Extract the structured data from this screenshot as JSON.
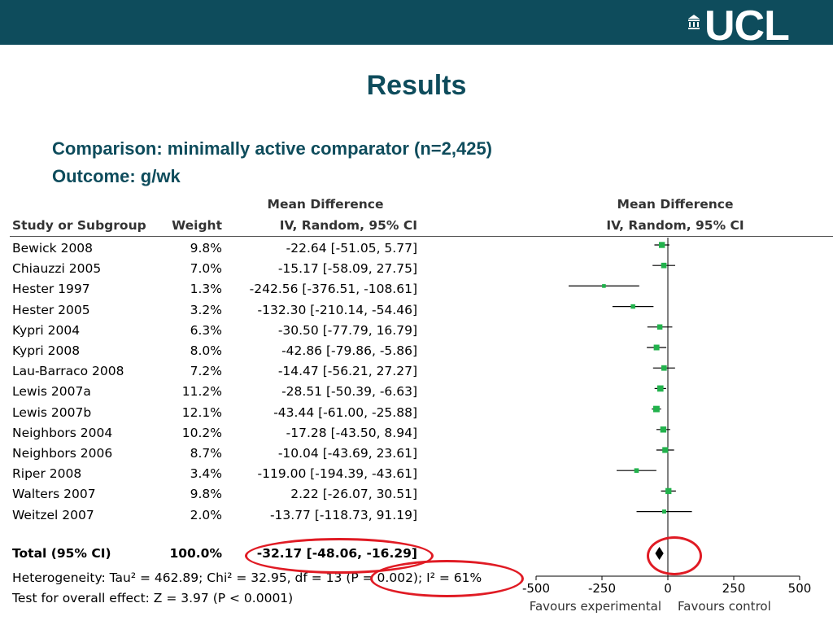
{
  "header": {
    "logo_text": "UCL"
  },
  "title": "Results",
  "comparison": "Comparison: minimally active comparator (n=2,425)",
  "outcome": "Outcome: g/wk",
  "table": {
    "col_study": "Study or Subgroup",
    "col_weight": "Weight",
    "col_md_top": "Mean Difference",
    "col_md_sub": "IV, Random, 95% CI",
    "plot_md_top": "Mean Difference",
    "plot_md_sub": "IV, Random, 95% CI",
    "rows": [
      {
        "study": "Bewick 2008",
        "weight": "9.8%",
        "ci": "-22.64 [-51.05, 5.77]"
      },
      {
        "study": "Chiauzzi 2005",
        "weight": "7.0%",
        "ci": "-15.17 [-58.09, 27.75]"
      },
      {
        "study": "Hester 1997",
        "weight": "1.3%",
        "ci": "-242.56 [-376.51, -108.61]"
      },
      {
        "study": "Hester 2005",
        "weight": "3.2%",
        "ci": "-132.30 [-210.14, -54.46]"
      },
      {
        "study": "Kypri 2004",
        "weight": "6.3%",
        "ci": "-30.50 [-77.79, 16.79]"
      },
      {
        "study": "Kypri 2008",
        "weight": "8.0%",
        "ci": "-42.86 [-79.86, -5.86]"
      },
      {
        "study": "Lau-Barraco 2008",
        "weight": "7.2%",
        "ci": "-14.47 [-56.21, 27.27]"
      },
      {
        "study": "Lewis 2007a",
        "weight": "11.2%",
        "ci": "-28.51 [-50.39, -6.63]"
      },
      {
        "study": "Lewis 2007b",
        "weight": "12.1%",
        "ci": "-43.44 [-61.00, -25.88]"
      },
      {
        "study": "Neighbors 2004",
        "weight": "10.2%",
        "ci": "-17.28 [-43.50, 8.94]"
      },
      {
        "study": "Neighbors 2006",
        "weight": "8.7%",
        "ci": "-10.04 [-43.69, 23.61]"
      },
      {
        "study": "Riper 2008",
        "weight": "3.4%",
        "ci": "-119.00 [-194.39, -43.61]"
      },
      {
        "study": "Walters 2007",
        "weight": "9.8%",
        "ci": "2.22 [-26.07, 30.51]"
      },
      {
        "study": "Weitzel 2007",
        "weight": "2.0%",
        "ci": "-13.77 [-118.73, 91.19]"
      }
    ],
    "total": {
      "study": "Total (95% CI)",
      "weight": "100.0%",
      "ci": "-32.17 [-48.06, -16.29]"
    },
    "heterogeneity": "Heterogeneity: Tau² = 462.89; Chi² = 32.95, df = 13 (P = 0.002); I² = 61%",
    "overall": "Test for overall effect: Z = 3.97 (P < 0.0001)",
    "favours_left": "Favours experimental",
    "favours_right": "Favours control"
  },
  "chart_data": {
    "type": "forest",
    "x_ticks": [
      "-500",
      "-250",
      "0",
      "250",
      "500"
    ],
    "xlim": [
      -500,
      500
    ],
    "studies": [
      {
        "name": "Bewick 2008",
        "md": -22.64,
        "lo": -51.05,
        "hi": 5.77,
        "weight": 9.8
      },
      {
        "name": "Chiauzzi 2005",
        "md": -15.17,
        "lo": -58.09,
        "hi": 27.75,
        "weight": 7.0
      },
      {
        "name": "Hester 1997",
        "md": -242.56,
        "lo": -376.51,
        "hi": -108.61,
        "weight": 1.3
      },
      {
        "name": "Hester 2005",
        "md": -132.3,
        "lo": -210.14,
        "hi": -54.46,
        "weight": 3.2
      },
      {
        "name": "Kypri 2004",
        "md": -30.5,
        "lo": -77.79,
        "hi": 16.79,
        "weight": 6.3
      },
      {
        "name": "Kypri 2008",
        "md": -42.86,
        "lo": -79.86,
        "hi": -5.86,
        "weight": 8.0
      },
      {
        "name": "Lau-Barraco 2008",
        "md": -14.47,
        "lo": -56.21,
        "hi": 27.27,
        "weight": 7.2
      },
      {
        "name": "Lewis 2007a",
        "md": -28.51,
        "lo": -50.39,
        "hi": -6.63,
        "weight": 11.2
      },
      {
        "name": "Lewis 2007b",
        "md": -43.44,
        "lo": -61.0,
        "hi": -25.88,
        "weight": 12.1
      },
      {
        "name": "Neighbors 2004",
        "md": -17.28,
        "lo": -43.5,
        "hi": 8.94,
        "weight": 10.2
      },
      {
        "name": "Neighbors 2006",
        "md": -10.04,
        "lo": -43.69,
        "hi": 23.61,
        "weight": 8.7
      },
      {
        "name": "Riper 2008",
        "md": -119.0,
        "lo": -194.39,
        "hi": -43.61,
        "weight": 3.4
      },
      {
        "name": "Walters 2007",
        "md": 2.22,
        "lo": -26.07,
        "hi": 30.51,
        "weight": 9.8
      },
      {
        "name": "Weitzel 2007",
        "md": -13.77,
        "lo": -118.73,
        "hi": 91.19,
        "weight": 2.0
      }
    ],
    "total": {
      "md": -32.17,
      "lo": -48.06,
      "hi": -16.29
    },
    "colors": {
      "marker": "#22b24c",
      "highlight": "#e01b24",
      "brand": "#0e4c5c"
    }
  }
}
